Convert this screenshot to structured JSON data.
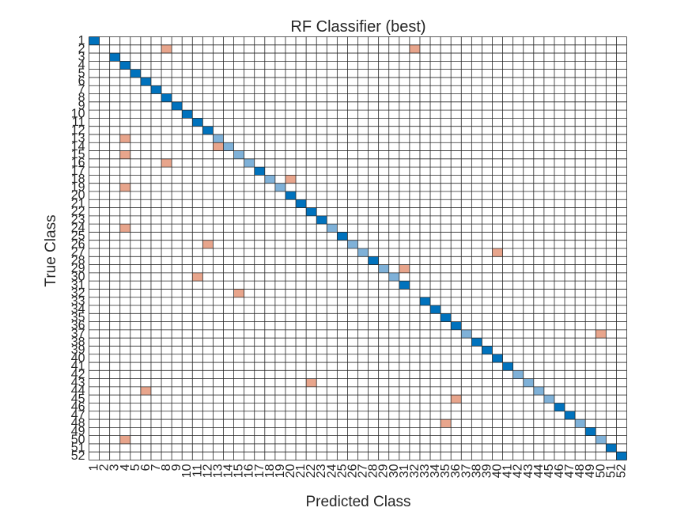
{
  "chart_data": {
    "type": "heatmap",
    "title": "RF Classifier (best)",
    "xlabel": "Predicted Class",
    "ylabel": "True Class",
    "x_ticks": [
      "1",
      "2",
      "3",
      "4",
      "5",
      "6",
      "7",
      "8",
      "9",
      "10",
      "11",
      "12",
      "13",
      "14",
      "15",
      "16",
      "17",
      "18",
      "19",
      "20",
      "21",
      "22",
      "23",
      "24",
      "25",
      "26",
      "27",
      "28",
      "29",
      "30",
      "31",
      "32",
      "33",
      "34",
      "35",
      "36",
      "37",
      "38",
      "39",
      "40",
      "41",
      "42",
      "43",
      "44",
      "45",
      "46",
      "47",
      "48",
      "49",
      "50",
      "51",
      "52"
    ],
    "y_ticks": [
      "1",
      "2",
      "3",
      "4",
      "5",
      "6",
      "7",
      "8",
      "9",
      "10",
      "11",
      "12",
      "13",
      "14",
      "15",
      "16",
      "17",
      "18",
      "19",
      "20",
      "21",
      "22",
      "23",
      "24",
      "25",
      "26",
      "27",
      "28",
      "29",
      "30",
      "31",
      "32",
      "33",
      "34",
      "35",
      "36",
      "37",
      "38",
      "39",
      "40",
      "41",
      "42",
      "43",
      "44",
      "45",
      "46",
      "47",
      "48",
      "49",
      "50",
      "51",
      "52"
    ],
    "grid": true,
    "colors": {
      "correct_full": "#0072bd",
      "correct_partial": "#7fb1d8",
      "error": "#e8a58c",
      "grid": "#262626",
      "background": "#ffffff"
    },
    "diagonal_strength": [
      "full",
      "absent",
      "full",
      "full",
      "full",
      "full",
      "full",
      "full",
      "full",
      "full",
      "full",
      "full",
      "partial",
      "partial",
      "partial",
      "partial",
      "full",
      "partial",
      "partial",
      "full",
      "full",
      "full",
      "full",
      "partial",
      "full",
      "partial",
      "partial",
      "full",
      "partial",
      "partial",
      "full",
      "absent",
      "full",
      "full",
      "full",
      "full",
      "partial",
      "full",
      "full",
      "full",
      "full",
      "partial",
      "partial",
      "partial",
      "partial",
      "full",
      "full",
      "partial",
      "full",
      "partial",
      "full",
      "full"
    ],
    "misclassifications": [
      {
        "true": "2",
        "predicted": "8"
      },
      {
        "true": "2",
        "predicted": "32"
      },
      {
        "true": "13",
        "predicted": "4"
      },
      {
        "true": "14",
        "predicted": "13"
      },
      {
        "true": "15",
        "predicted": "4"
      },
      {
        "true": "16",
        "predicted": "8"
      },
      {
        "true": "18",
        "predicted": "20"
      },
      {
        "true": "19",
        "predicted": "4"
      },
      {
        "true": "24",
        "predicted": "4"
      },
      {
        "true": "26",
        "predicted": "12"
      },
      {
        "true": "27",
        "predicted": "40"
      },
      {
        "true": "29",
        "predicted": "31"
      },
      {
        "true": "30",
        "predicted": "11"
      },
      {
        "true": "32",
        "predicted": "15"
      },
      {
        "true": "37",
        "predicted": "50"
      },
      {
        "true": "43",
        "predicted": "22"
      },
      {
        "true": "44",
        "predicted": "6"
      },
      {
        "true": "45",
        "predicted": "36"
      },
      {
        "true": "48",
        "predicted": "35"
      },
      {
        "true": "50",
        "predicted": "4"
      }
    ]
  }
}
